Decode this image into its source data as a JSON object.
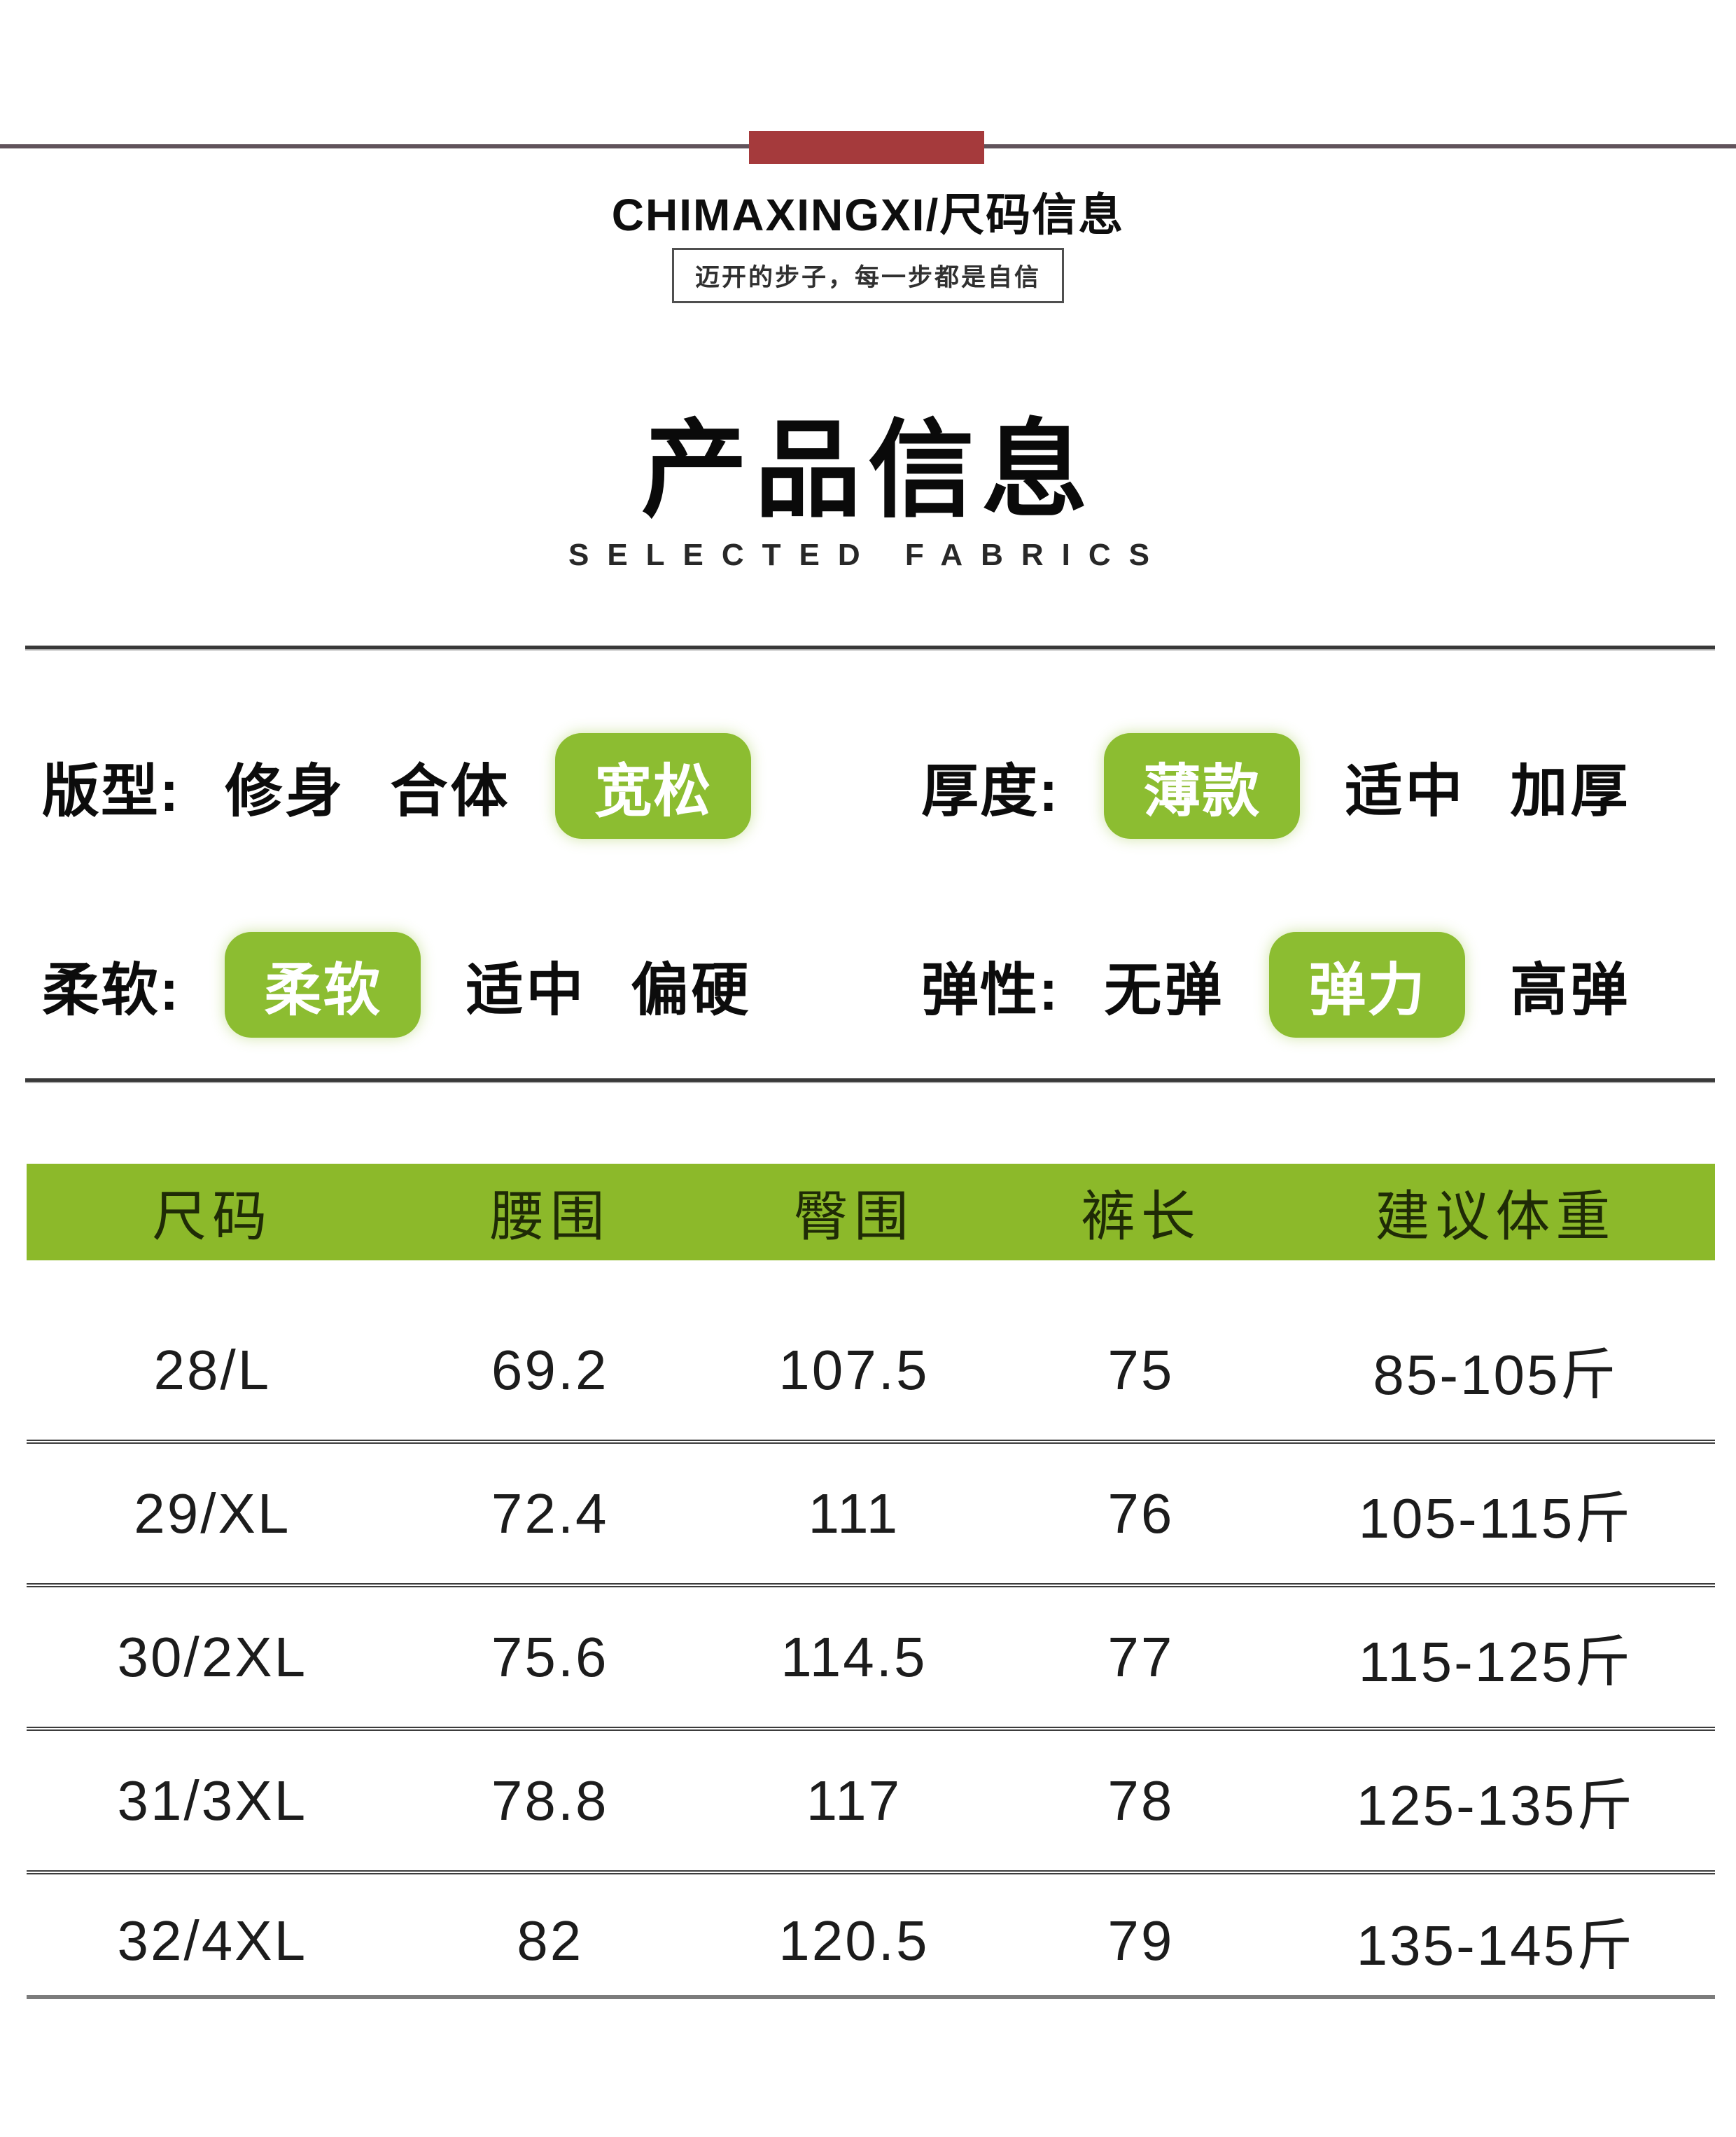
{
  "brand_header": {
    "title": "CHIMAXINGXI/尺码信息",
    "slogan": "迈开的步子，每一步都是自信"
  },
  "section_title": {
    "zh": "产品信息",
    "en": "SELECTED FABRICS"
  },
  "attributes": {
    "rows": [
      {
        "left": {
          "label": "版型:",
          "options": [
            {
              "text": "修身",
              "selected": false
            },
            {
              "text": "合体",
              "selected": false
            },
            {
              "text": "宽松",
              "selected": true
            }
          ]
        },
        "right": {
          "label": "厚度:",
          "options": [
            {
              "text": "薄款",
              "selected": true
            },
            {
              "text": "适中",
              "selected": false
            },
            {
              "text": "加厚",
              "selected": false
            }
          ]
        }
      },
      {
        "left": {
          "label": "柔软:",
          "options": [
            {
              "text": "柔软",
              "selected": true
            },
            {
              "text": "适中",
              "selected": false
            },
            {
              "text": "偏硬",
              "selected": false
            }
          ]
        },
        "right": {
          "label": "弹性:",
          "options": [
            {
              "text": "无弹",
              "selected": false
            },
            {
              "text": "弹力",
              "selected": true
            },
            {
              "text": "高弹",
              "selected": false
            }
          ]
        }
      }
    ]
  },
  "size_table": {
    "headers": [
      "尺码",
      "腰围",
      "臀围",
      "裤长",
      "建议体重"
    ],
    "rows": [
      [
        "28/L",
        "69.2",
        "107.5",
        "75",
        "85-105斤"
      ],
      [
        "29/XL",
        "72.4",
        "111",
        "76",
        "105-115斤"
      ],
      [
        "30/2XL",
        "75.6",
        "114.5",
        "77",
        "115-125斤"
      ],
      [
        "31/3XL",
        "78.8",
        "117",
        "78",
        "125-135斤"
      ],
      [
        "32/4XL",
        "82",
        "120.5",
        "79",
        "135-145斤"
      ]
    ]
  },
  "colors": {
    "accent_green": "#8cbd31",
    "header_green": "#8cb92a",
    "brand_red": "#a53a3c",
    "rule_dark": "#393939",
    "rule_gray": "#7c7c7c"
  }
}
